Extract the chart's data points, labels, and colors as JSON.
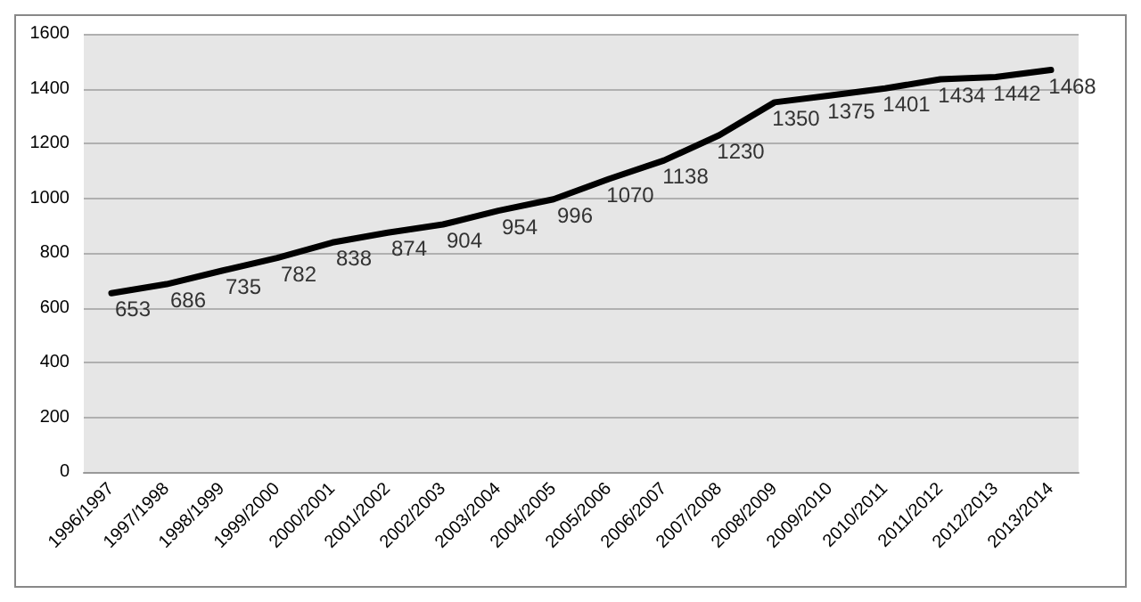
{
  "chart_data": {
    "type": "line",
    "categories": [
      "1996/1997",
      "1997/1998",
      "1998/1999",
      "1999/2000",
      "2000/2001",
      "2001/2002",
      "2002/2003",
      "2003/2004",
      "2004/2005",
      "2005/2006",
      "2006/2007",
      "2007/2008",
      "2008/2009",
      "2009/2010",
      "2010/2011",
      "2011/2012",
      "2012/2013",
      "2013/2014"
    ],
    "values": [
      653,
      686,
      735,
      782,
      838,
      874,
      904,
      954,
      996,
      1070,
      1138,
      1230,
      1350,
      1375,
      1401,
      1434,
      1442,
      1468
    ],
    "color": "#000000",
    "ylim": [
      0,
      1600
    ],
    "yticks": [
      0,
      200,
      400,
      600,
      800,
      1000,
      1200,
      1400,
      1600
    ],
    "grid": "y",
    "data_labels": true,
    "marker": "none",
    "line_style": "solid"
  }
}
